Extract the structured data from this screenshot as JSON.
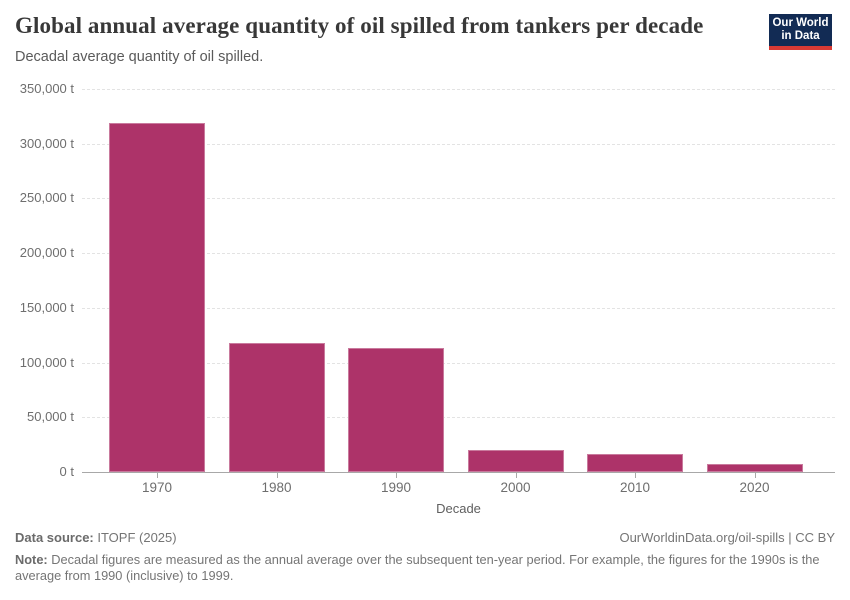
{
  "chart_data": {
    "type": "bar",
    "title": "Global annual average quantity of oil spilled from tankers per decade",
    "subtitle": "Decadal average quantity of oil spilled.",
    "categories": [
      "1970",
      "1980",
      "1990",
      "2000",
      "2010",
      "2020"
    ],
    "values": [
      319000,
      118000,
      113000,
      20000,
      16000,
      7000
    ],
    "xlabel": "Decade",
    "ylabel": "",
    "ylim": [
      0,
      350000
    ],
    "ytick_values": [
      0,
      50000,
      100000,
      150000,
      200000,
      250000,
      300000,
      350000
    ],
    "ytick_labels": [
      "0 t",
      "50,000 t",
      "100,000 t",
      "150,000 t",
      "200,000 t",
      "250,000 t",
      "300,000 t",
      "350,000 t"
    ],
    "unit": "t",
    "grid": "horizontal-dashed",
    "legend": "none",
    "bar_color": "#ad3369"
  },
  "logo": {
    "line1": "Our World",
    "line2": "in Data",
    "bg": "#122b54",
    "accent": "#d93a34"
  },
  "footer": {
    "datasource_label": "Data source:",
    "datasource_value": " ITOPF (2025)",
    "rights": "OurWorldinData.org/oil-spills | CC BY",
    "note_label": "Note:",
    "note_value": " Decadal figures are measured as the annual average over the subsequent ten-year period. For example, the figures for the 1990s is the average from 1990 (inclusive) to 1999."
  }
}
